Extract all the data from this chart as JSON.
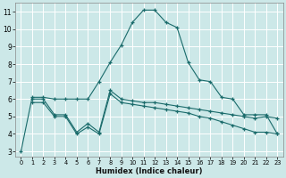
{
  "xlabel": "Humidex (Indice chaleur)",
  "background_color": "#cce8e8",
  "grid_color": "#ffffff",
  "line_color": "#1a6b6b",
  "xlim": [
    -0.5,
    23.5
  ],
  "ylim": [
    2.7,
    11.5
  ],
  "xticks": [
    0,
    1,
    2,
    3,
    4,
    5,
    6,
    7,
    8,
    9,
    10,
    11,
    12,
    13,
    14,
    15,
    16,
    17,
    18,
    19,
    20,
    21,
    22,
    23
  ],
  "yticks": [
    3,
    4,
    5,
    6,
    7,
    8,
    9,
    10,
    11
  ],
  "curve_top_x": [
    0,
    1,
    2,
    3,
    4,
    5,
    6,
    7,
    8,
    9,
    10,
    11,
    12,
    13,
    14,
    15,
    16,
    17,
    18,
    19,
    20,
    21,
    22,
    23
  ],
  "curve_top_y": [
    3.0,
    6.1,
    6.1,
    6.0,
    6.0,
    6.0,
    6.0,
    7.0,
    8.1,
    9.1,
    10.4,
    11.1,
    11.1,
    10.4,
    10.1,
    8.1,
    7.1,
    7.0,
    6.1,
    6.0,
    5.1,
    5.1,
    5.1,
    4.0
  ],
  "curve_mid_x": [
    1,
    2,
    3,
    4,
    5,
    6,
    7,
    8,
    9,
    10,
    11,
    12,
    13,
    14,
    15,
    16,
    17,
    18,
    19,
    20,
    21,
    22,
    23
  ],
  "curve_mid_y": [
    6.0,
    6.0,
    5.1,
    5.1,
    4.1,
    4.6,
    4.1,
    6.5,
    6.0,
    5.9,
    5.8,
    5.8,
    5.7,
    5.6,
    5.5,
    5.4,
    5.3,
    5.2,
    5.1,
    5.0,
    4.9,
    5.0,
    4.9
  ],
  "curve_bot_x": [
    1,
    2,
    3,
    4,
    5,
    6,
    7,
    8,
    9,
    10,
    11,
    12,
    13,
    14,
    15,
    16,
    17,
    18,
    19,
    20,
    21,
    22,
    23
  ],
  "curve_bot_y": [
    5.8,
    5.8,
    5.0,
    5.0,
    4.0,
    4.4,
    4.0,
    6.3,
    5.8,
    5.7,
    5.6,
    5.5,
    5.4,
    5.3,
    5.2,
    5.0,
    4.9,
    4.7,
    4.5,
    4.3,
    4.1,
    4.1,
    4.0
  ]
}
